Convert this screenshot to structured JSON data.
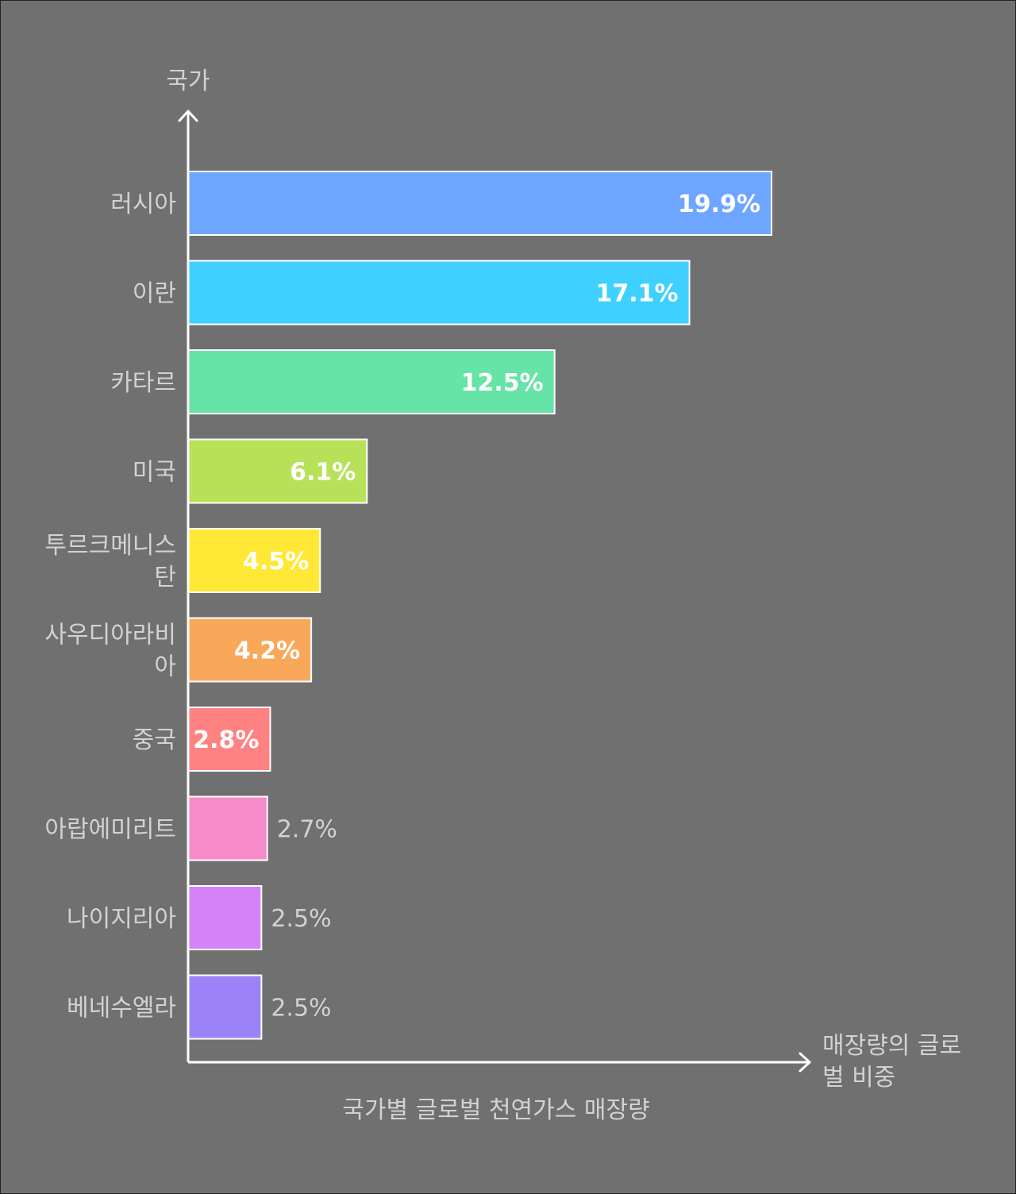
{
  "chart_data": {
    "type": "bar",
    "orientation": "horizontal",
    "title": "국가별 글로벌 천연가스 매장량",
    "ylabel": "국가",
    "xlabel": "매장량의 글로벌 비중",
    "categories": [
      "러시아",
      "이란",
      "카타르",
      "미국",
      "투르크메니스탄",
      "사우디아라비아",
      "중국",
      "아랍에미리트",
      "나이지리아",
      "베네수엘라"
    ],
    "values": [
      19.9,
      17.1,
      12.5,
      6.1,
      4.5,
      4.2,
      2.8,
      2.7,
      2.5,
      2.5
    ],
    "value_labels": [
      "19.9%",
      "17.1%",
      "12.5%",
      "6.1%",
      "4.5%",
      "4.2%",
      "2.8%",
      "2.7%",
      "2.5%",
      "2.5%"
    ],
    "colors": [
      "#6ea6ff",
      "#40d0ff",
      "#66e3a6",
      "#b8e15a",
      "#ffe835",
      "#f9a85a",
      "#ff8282",
      "#f78ac9",
      "#d682f8",
      "#9b82f8"
    ],
    "grid": false,
    "legend": "none"
  }
}
